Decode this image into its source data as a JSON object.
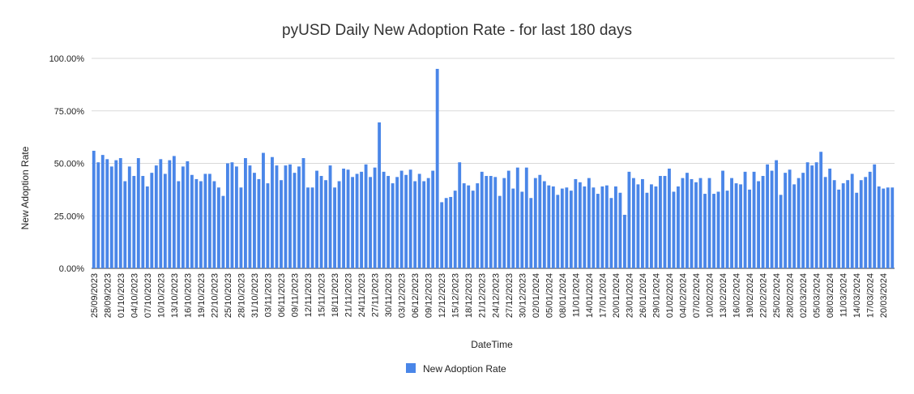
{
  "chart_data": {
    "type": "bar",
    "title": "pyUSD Daily New Adoption Rate - for last 180 days",
    "xlabel": "DateTime",
    "ylabel": "New Adoption Rate",
    "ylim": [
      0,
      100
    ],
    "yticks": [
      0,
      25,
      50,
      75,
      100
    ],
    "ytick_labels": [
      "0.00%",
      "25.00%",
      "50.00%",
      "75.00%",
      "100.00%"
    ],
    "grid": true,
    "legend_position": "bottom",
    "series": [
      {
        "name": "New Adoption Rate",
        "color": "#4a86e8",
        "values": [
          56,
          50.5,
          54,
          52,
          48.5,
          51.5,
          52.5,
          41.5,
          48.5,
          44,
          52.5,
          44,
          39,
          45.5,
          49,
          52,
          45,
          51.5,
          53.5,
          41.5,
          48.5,
          51,
          44.5,
          42.5,
          41.5,
          45,
          45,
          41.5,
          38.5,
          34.5,
          50,
          50.5,
          48.5,
          38.5,
          52.5,
          49,
          45.5,
          42.5,
          55,
          40.5,
          53,
          49,
          42,
          49,
          49.5,
          45.5,
          48.5,
          52.5,
          38.5,
          38.5,
          46.5,
          44,
          42,
          49,
          38.5,
          41.5,
          47.5,
          47,
          43.5,
          45,
          46,
          49.5,
          43.5,
          48,
          69.5,
          46,
          44,
          40.5,
          43.5,
          46.5,
          44.5,
          47,
          41.5,
          45,
          41.5,
          43,
          46.5,
          95,
          31.5,
          33.5,
          34,
          37,
          50.5,
          40.5,
          39.5,
          37,
          40.5,
          46,
          44,
          44,
          43.5,
          34.5,
          43,
          46.5,
          38,
          48,
          36.5,
          48,
          33.5,
          43,
          44.5,
          41.5,
          39.5,
          39,
          35,
          38,
          38.5,
          37,
          42.5,
          41,
          39,
          43,
          38.5,
          35.5,
          39,
          39.5,
          33.5,
          39,
          36,
          25.5,
          46,
          43,
          40,
          42.5,
          36,
          40,
          39,
          44,
          44,
          47.5,
          36.5,
          39,
          43,
          45.5,
          42.5,
          41,
          43,
          35.5,
          43,
          35.5,
          36.5,
          46.5,
          37,
          43,
          40.5,
          40,
          46,
          37.5,
          46,
          41.5,
          44,
          49.5,
          46.5,
          51.5,
          35,
          45.5,
          47,
          40,
          43,
          45.5,
          50.5,
          49,
          50.5,
          55.5,
          43.5,
          47.5,
          42,
          37.5,
          40.5,
          42,
          45,
          36,
          42,
          43.5,
          46,
          49.5,
          39,
          38,
          38.5,
          38.5
        ]
      }
    ],
    "tick_every": 3,
    "tick_labels": [
      "25/09/2023",
      "28/09/2023",
      "01/10/2023",
      "04/10/2023",
      "07/10/2023",
      "10/10/2023",
      "13/10/2023",
      "16/10/2023",
      "19/10/2023",
      "22/10/2023",
      "25/10/2023",
      "28/10/2023",
      "31/10/2023",
      "03/11/2023",
      "06/11/2023",
      "09/11/2023",
      "12/11/2023",
      "15/11/2023",
      "18/11/2023",
      "21/11/2023",
      "24/11/2023",
      "27/11/2023",
      "30/11/2023",
      "03/12/2023",
      "06/12/2023",
      "09/12/2023",
      "12/12/2023",
      "15/12/2023",
      "18/12/2023",
      "21/12/2023",
      "24/12/2023",
      "27/12/2023",
      "30/12/2023",
      "02/01/2024",
      "05/01/2024",
      "08/01/2024",
      "11/01/2024",
      "14/01/2024",
      "17/01/2024",
      "20/01/2024",
      "23/01/2024",
      "26/01/2024",
      "29/01/2024",
      "01/02/2024",
      "04/02/2024",
      "07/02/2024",
      "10/02/2024",
      "13/02/2024",
      "16/02/2024",
      "19/02/2024",
      "22/02/2024",
      "25/02/2024",
      "28/02/2024",
      "02/03/2024",
      "05/03/2024",
      "08/03/2024",
      "11/03/2024",
      "14/03/2024",
      "17/03/2024",
      "20/03/2024"
    ]
  }
}
